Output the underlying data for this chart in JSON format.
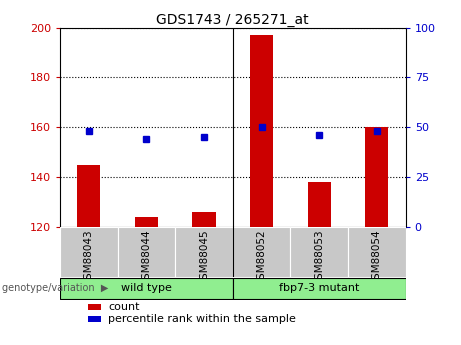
{
  "title": "GDS1743 / 265271_at",
  "samples": [
    "GSM88043",
    "GSM88044",
    "GSM88045",
    "GSM88052",
    "GSM88053",
    "GSM88054"
  ],
  "counts": [
    145,
    124,
    126,
    197,
    138,
    160
  ],
  "percentile_ranks": [
    48,
    44,
    45,
    50,
    46,
    48
  ],
  "ylim_left": [
    120,
    200
  ],
  "ylim_right": [
    0,
    100
  ],
  "yticks_left": [
    120,
    140,
    160,
    180,
    200
  ],
  "yticks_right": [
    0,
    25,
    50,
    75,
    100
  ],
  "group_labels": [
    "wild type",
    "fbp7-3 mutant"
  ],
  "group_ranges": [
    [
      0,
      2
    ],
    [
      3,
      5
    ]
  ],
  "group_color": "#90EE90",
  "bar_color": "#CC0000",
  "dot_color": "#0000CC",
  "bar_width": 0.4,
  "grid_color": "#000000",
  "background_color": "#ffffff",
  "tick_area_color": "#c8c8c8",
  "left_tick_color": "#CC0000",
  "right_tick_color": "#0000CC",
  "legend_items": [
    "count",
    "percentile rank within the sample"
  ],
  "genotype_label": "genotype/variation"
}
